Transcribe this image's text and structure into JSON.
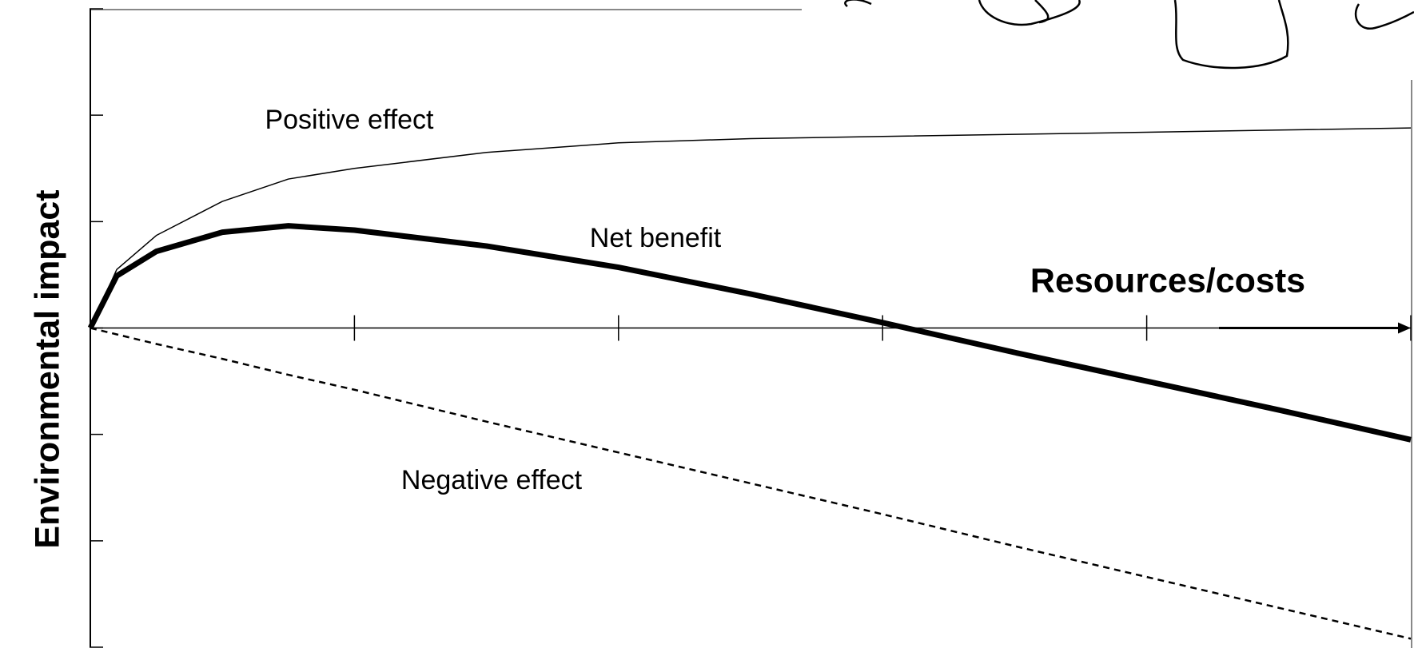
{
  "chart_data": {
    "type": "line",
    "x_label": "Resources/costs",
    "y_label": "Environmental impact",
    "x": [
      0,
      0.1,
      0.25,
      0.5,
      0.75,
      1,
      1.5,
      2,
      2.5,
      3,
      3.5,
      4,
      4.5,
      5
    ],
    "xlim": [
      0,
      5
    ],
    "xticks": [
      0,
      1,
      2,
      3,
      4,
      5
    ],
    "ylim": [
      -3,
      3
    ],
    "yticks": [
      -3,
      -2,
      -1,
      0,
      1,
      2,
      3
    ],
    "series": [
      {
        "name": "Positive effect",
        "color": "#000000",
        "style": "thin",
        "values": [
          0,
          0.55,
          0.87,
          1.19,
          1.4,
          1.5,
          1.65,
          1.74,
          1.78,
          1.8,
          1.82,
          1.84,
          1.86,
          1.88
        ]
      },
      {
        "name": "Net benefit",
        "color": "#000000",
        "style": "thick",
        "values": [
          0,
          0.49,
          0.72,
          0.9,
          0.96,
          0.92,
          0.77,
          0.57,
          0.32,
          0.05,
          -0.23,
          -0.5,
          -0.77,
          -1.05
        ]
      },
      {
        "name": "Negative effect",
        "color": "#000000",
        "style": "dashed",
        "values": [
          0,
          -0.06,
          -0.15,
          -0.29,
          -0.44,
          -0.58,
          -0.88,
          -1.17,
          -1.46,
          -1.75,
          -2.05,
          -2.34,
          -2.63,
          -2.92
        ]
      }
    ]
  }
}
